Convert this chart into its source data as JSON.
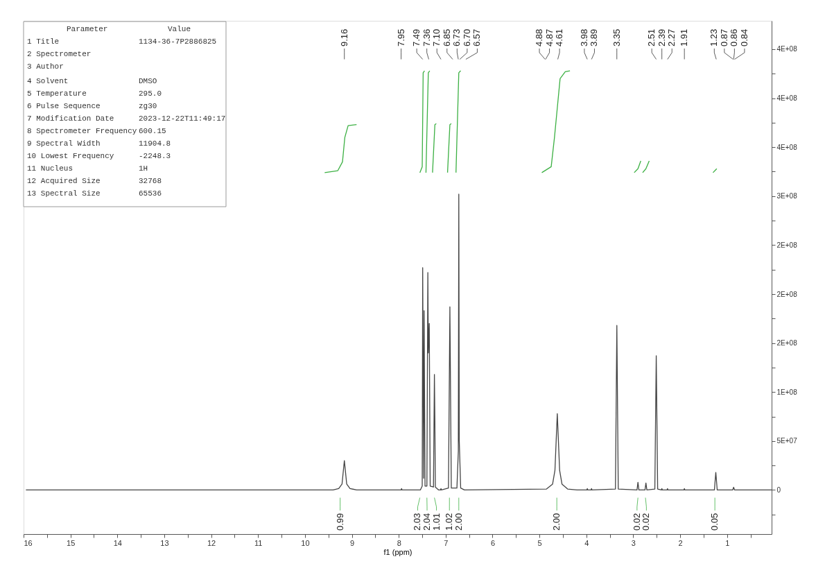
{
  "chart_data": {
    "type": "line",
    "xlabel": "f1 (ppm)",
    "xlim": [
      16,
      0.05
    ],
    "ylim": [
      -45000000,
      479000000
    ],
    "xticks": [
      16,
      15,
      14,
      13,
      12,
      11,
      10,
      9,
      8,
      7,
      6,
      5,
      4,
      3,
      2,
      1,
      {
        "value": 15.5,
        "label": null
      },
      {
        "value": 14.5,
        "label": null
      },
      {
        "value": 13.5,
        "label": null
      },
      {
        "value": 12.5,
        "label": null
      },
      {
        "value": 11.5,
        "label": null
      },
      {
        "value": 10.5,
        "label": null
      },
      {
        "value": 9.5,
        "label": null
      },
      {
        "value": 8.5,
        "label": null
      },
      {
        "value": 7.5,
        "label": null
      },
      {
        "value": 6.5,
        "label": null
      },
      {
        "value": 5.5,
        "label": null
      },
      {
        "value": 4.5,
        "label": null
      },
      {
        "value": 3.5,
        "label": null
      },
      {
        "value": 2.5,
        "label": null
      },
      {
        "value": 1.5,
        "label": null
      },
      {
        "value": 0.5,
        "label": null
      }
    ],
    "yticks": [
      0,
      {
        "value": 50000000,
        "label": "5E+07"
      },
      {
        "value": 100000000,
        "label": "1E+08"
      },
      {
        "value": 150000000,
        "label": "2E+08"
      },
      {
        "value": 200000000,
        "label": "2E+08"
      },
      {
        "value": 250000000,
        "label": "2E+08"
      },
      {
        "value": 300000000,
        "label": "3E+08"
      },
      {
        "value": 350000000,
        "label": "4E+08"
      },
      {
        "value": 400000000,
        "label": "4E+08"
      },
      {
        "value": 450000000,
        "label": "4E+08"
      },
      {
        "value": 25000000,
        "label": null
      },
      {
        "value": 75000000,
        "label": null
      },
      {
        "value": 125000000,
        "label": null
      },
      {
        "value": 175000000,
        "label": null
      },
      {
        "value": 225000000,
        "label": null
      },
      {
        "value": 275000000,
        "label": null
      },
      {
        "value": 325000000,
        "label": null
      },
      {
        "value": 375000000,
        "label": null
      },
      {
        "value": 425000000,
        "label": null
      },
      {
        "value": -25000000,
        "label": null
      }
    ],
    "grid": false,
    "legend": false,
    "marker": "none",
    "line_style": "solid",
    "series": [
      {
        "color": "#444444",
        "x": [
          15.95,
          9.4,
          9.28,
          9.21,
          9.16,
          9.11,
          9.04,
          8.9,
          7.95,
          7.94,
          7.93,
          7.54,
          7.5,
          7.49,
          7.47,
          7.46,
          7.44,
          7.4,
          7.38,
          7.37,
          7.35,
          7.33,
          7.26,
          7.24,
          7.23,
          7.22,
          7.15,
          7.11,
          7.1,
          7.09,
          6.94,
          6.91,
          6.88,
          6.76,
          6.73,
          6.72,
          6.71,
          6.68,
          6.6,
          4.85,
          4.72,
          4.67,
          4.62,
          4.57,
          4.52,
          4.4,
          4.2,
          3.99,
          3.98,
          3.97,
          3.9,
          3.89,
          3.88,
          3.38,
          3.35,
          3.32,
          2.92,
          2.9,
          2.88,
          2.75,
          2.73,
          2.71,
          2.54,
          2.51,
          2.48,
          2.4,
          2.39,
          2.38,
          2.28,
          2.27,
          2.26,
          1.92,
          1.91,
          1.9,
          1.27,
          1.24,
          1.21,
          0.88,
          0.86,
          0.84,
          0.05
        ],
        "values": [
          0,
          0,
          1500000,
          6000000,
          30000000,
          6000000,
          1500000,
          0,
          0,
          1500000,
          0,
          0,
          4000000,
          227000000,
          12000000,
          183000000,
          4000000,
          4000000,
          222000000,
          140000000,
          170000000,
          4000000,
          3000000,
          118000000,
          70000000,
          3000000,
          0,
          0,
          1500000,
          0,
          2000000,
          187000000,
          2000000,
          2000000,
          40000000,
          302000000,
          50000000,
          2000000,
          0,
          1000000,
          6000000,
          20000000,
          78000000,
          20000000,
          6000000,
          1000000,
          0,
          0,
          1500000,
          0,
          0,
          1500000,
          0,
          1000000,
          168000000,
          1000000,
          0,
          7800000,
          0,
          0,
          7100000,
          0,
          1000000,
          137000000,
          1000000,
          0,
          1500000,
          0,
          0,
          1500000,
          0,
          0,
          1500000,
          0,
          0,
          18000000,
          0,
          0,
          2800000,
          0,
          0
        ]
      },
      {
        "color": "#3cb043",
        "x": [
          9.58,
          9.3,
          9.2,
          9.15,
          9.08,
          8.9
        ],
        "values": [
          324000000,
          326000000,
          335000000,
          360000000,
          372000000,
          373000000
        ]
      },
      {
        "color": "#3cb043",
        "x": [
          7.55,
          7.5,
          7.48,
          7.45
        ],
        "values": [
          324000000,
          330000000,
          426000000,
          428000000
        ]
      },
      {
        "color": "#3cb043",
        "x": [
          7.42,
          7.37,
          7.34
        ],
        "values": [
          324000000,
          426000000,
          428000000
        ]
      },
      {
        "color": "#3cb043",
        "x": [
          7.28,
          7.23,
          7.2
        ],
        "values": [
          324000000,
          373000000,
          374000000
        ]
      },
      {
        "color": "#3cb043",
        "x": [
          6.96,
          6.91,
          6.88
        ],
        "values": [
          324000000,
          373000000,
          374000000
        ]
      },
      {
        "color": "#3cb043",
        "x": [
          6.78,
          6.72,
          6.68
        ],
        "values": [
          324000000,
          426000000,
          428000000
        ]
      },
      {
        "color": "#3cb043",
        "x": [
          4.95,
          4.75,
          4.68,
          4.62,
          4.56,
          4.45,
          4.35
        ],
        "values": [
          324000000,
          330000000,
          360000000,
          390000000,
          420000000,
          427000000,
          428000000
        ]
      },
      {
        "color": "#3cb043",
        "x": [
          2.98,
          2.9,
          2.84
        ],
        "values": [
          324000000,
          328000000,
          336000000
        ]
      },
      {
        "color": "#3cb043",
        "x": [
          2.8,
          2.73,
          2.66
        ],
        "values": [
          324000000,
          328000000,
          336000000
        ]
      },
      {
        "color": "#3cb043",
        "x": [
          1.3,
          1.22
        ],
        "values": [
          324000000,
          328000000
        ]
      }
    ],
    "annotations": [
      {
        "text": "9.16",
        "x": 9.16
      },
      {
        "text": "7.95",
        "x": 7.95
      },
      {
        "text": "7.49",
        "x": 7.49
      },
      {
        "text": "7.36",
        "x": 7.36
      },
      {
        "text": "7.10",
        "x": 7.1
      },
      {
        "text": "6.85",
        "x": 6.85
      },
      {
        "text": "6.73",
        "x": 6.73
      },
      {
        "text": "6.70",
        "x": 6.7
      },
      {
        "text": "6.57",
        "x": 6.57
      },
      {
        "text": "4.88",
        "x": 4.88
      },
      {
        "text": "4.87",
        "x": 4.87
      },
      {
        "text": "4.61",
        "x": 4.61
      },
      {
        "text": "3.98",
        "x": 3.98
      },
      {
        "text": "3.89",
        "x": 3.89
      },
      {
        "text": "3.35",
        "x": 3.35
      },
      {
        "text": "2.51",
        "x": 2.51
      },
      {
        "text": "2.39",
        "x": 2.39
      },
      {
        "text": "2.27",
        "x": 2.27
      },
      {
        "text": "1.91",
        "x": 1.91
      },
      {
        "text": "1.23",
        "x": 1.23
      },
      {
        "text": "0.87",
        "x": 0.87
      },
      {
        "text": "0.86",
        "x": 0.86
      },
      {
        "text": "0.84",
        "x": 0.84
      },
      {
        "text": "0.99",
        "x": 9.25
      },
      {
        "text": "2.03",
        "x": 7.55
      },
      {
        "text": "2.04",
        "x": 7.4
      },
      {
        "text": "1.01",
        "x": 7.24
      },
      {
        "text": "1.02",
        "x": 6.92
      },
      {
        "text": "2.00",
        "x": 6.72
      },
      {
        "text": "2.00",
        "x": 4.63
      },
      {
        "text": "0.02",
        "x": 2.9
      },
      {
        "text": "0.02",
        "x": 2.74
      },
      {
        "text": "0.05",
        "x": 1.26
      },
      "Parameter  Value",
      "1 Title  1134-36-7P2886825",
      "2 Spectrometer",
      "3 Author",
      "4 Solvent  DMSO",
      "5 Temperature  295.0",
      "6 Pulse Sequence  zg30",
      "7 Modification Date  2023-12-22T11:49:17",
      "8 Spectrometer Frequency  600.15",
      "9 Spectral Width  11904.8",
      "10 Lowest Frequency  -2248.3",
      "11 Nucleus  1H",
      "12 Acquired Size  32768",
      "13 Spectral Size  65536"
    ]
  }
}
